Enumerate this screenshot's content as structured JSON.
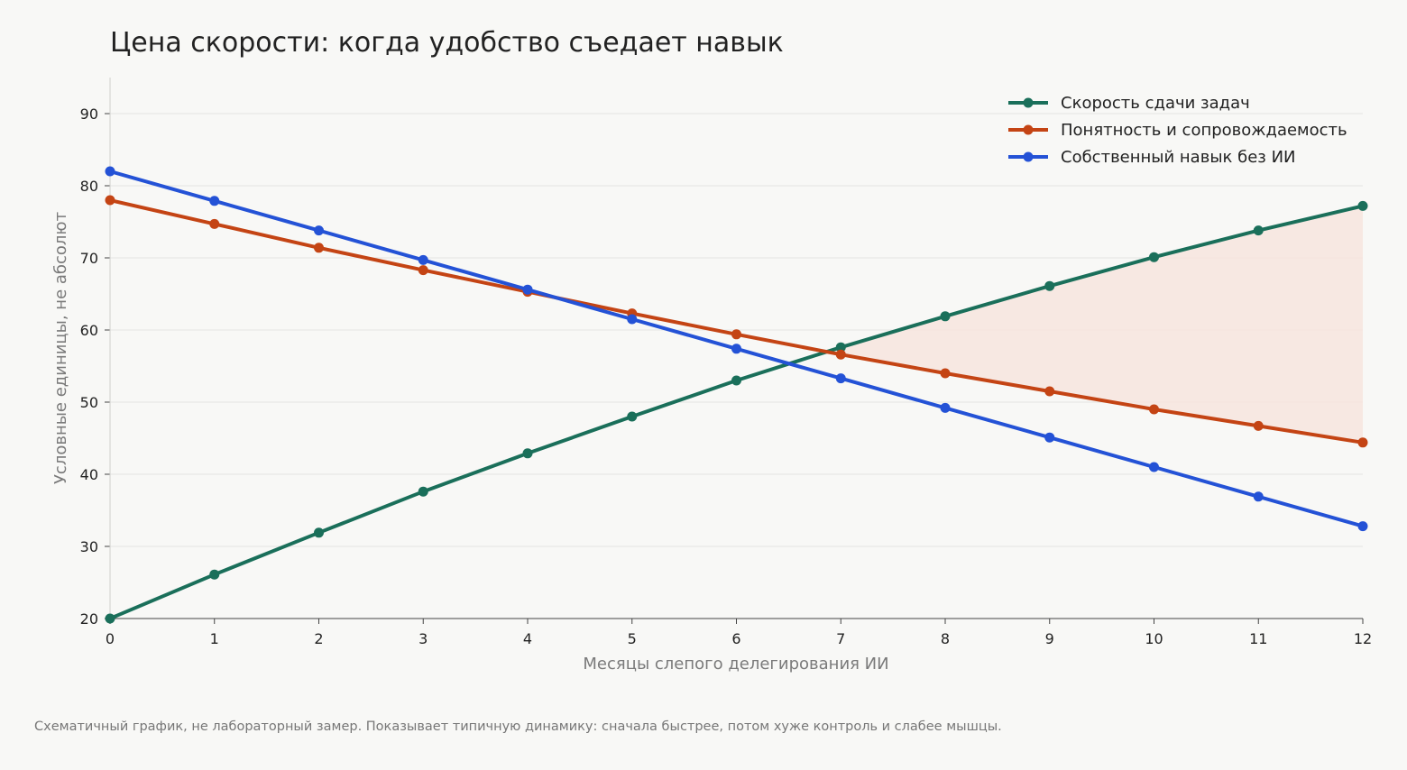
{
  "chart_data": {
    "type": "line",
    "title": "Цена скорости: когда удобство съедает навык",
    "xlabel": "Месяцы слепого делегирования ИИ",
    "ylabel": "Условные единицы, не абсолют",
    "xlim": [
      0,
      12
    ],
    "ylim": [
      20,
      95
    ],
    "x": [
      0,
      1,
      2,
      3,
      4,
      5,
      6,
      7,
      8,
      9,
      10,
      11,
      12
    ],
    "xticks": [
      "0",
      "1",
      "2",
      "3",
      "4",
      "5",
      "6",
      "7",
      "8",
      "9",
      "10",
      "11",
      "12"
    ],
    "yticks": [
      20,
      30,
      40,
      50,
      60,
      70,
      80,
      90
    ],
    "grid": "horizontal",
    "legend_position": "top-right",
    "series": [
      {
        "name": "Скорость сдачи задач",
        "color": "#1a6f5a",
        "values": [
          20,
          26.1,
          31.9,
          37.6,
          42.9,
          48,
          53,
          57.6,
          61.9,
          66.1,
          70.1,
          73.8,
          77.2
        ]
      },
      {
        "name": "Понятность и сопровождаемость",
        "color": "#c44414",
        "values": [
          78,
          74.7,
          71.4,
          68.3,
          65.3,
          62.3,
          59.4,
          56.6,
          54,
          51.5,
          49,
          46.7,
          44.4
        ]
      },
      {
        "name": "Собственный навык без ИИ",
        "color": "#2452d6",
        "values": [
          82,
          77.9,
          73.8,
          69.7,
          65.6,
          61.5,
          57.4,
          53.3,
          49.2,
          45.1,
          41,
          36.9,
          32.8
        ]
      }
    ],
    "shaded_region": {
      "between": [
        "Скорость сдачи задач",
        "Понятность и сопровождаемость"
      ],
      "where": "speed above clarity",
      "color": "#f7e5de"
    },
    "footnote": "Схематичный график, не лабораторный замер. Показывает типичную динамику: сначала быстрее, потом хуже контроль и слабее мышцы."
  }
}
